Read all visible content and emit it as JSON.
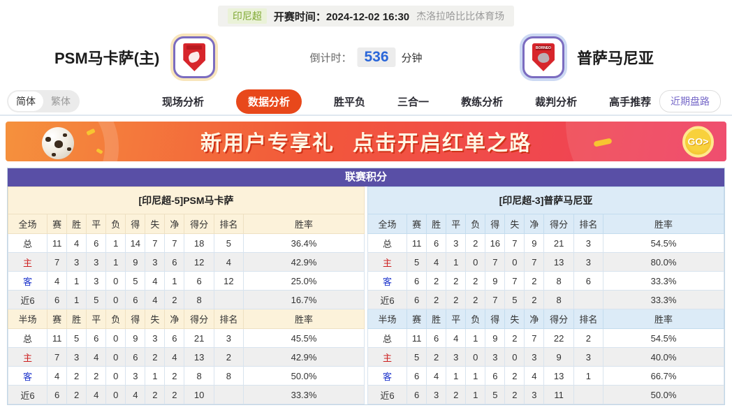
{
  "header": {
    "league_badge": "印尼超",
    "kickoff_label": "开赛时间：",
    "kickoff_time": "2024-12-02 16:30",
    "venue": "杰洛拉哈比比体育场"
  },
  "match": {
    "home_name": "PSM马卡萨(主)",
    "away_name": "普萨马尼亚",
    "away_logo_text": "BORNEO",
    "countdown_label": "倒计时：",
    "countdown_value": "536",
    "countdown_unit": "分钟"
  },
  "nav": {
    "lang_simplified": "简体",
    "lang_traditional": "繁体",
    "tabs": [
      "现场分析",
      "数据分析",
      "胜平负",
      "三合一",
      "教练分析",
      "裁判分析",
      "高手推荐"
    ],
    "active_tab": "数据分析",
    "recent_button": "近期盘路"
  },
  "banner": {
    "text_1": "新用户专享礼",
    "text_2": "点击开启红单之路",
    "go_label": "GO>"
  },
  "table": {
    "title": "联赛积分",
    "home": {
      "section_title": "[印尼超-5]PSM马卡萨",
      "full_header": [
        "全场",
        "赛",
        "胜",
        "平",
        "负",
        "得",
        "失",
        "净",
        "得分",
        "排名",
        "胜率"
      ],
      "full_rows": [
        [
          "总",
          "11",
          "4",
          "6",
          "1",
          "14",
          "7",
          "7",
          "18",
          "5",
          "36.4%"
        ],
        [
          "主",
          "7",
          "3",
          "3",
          "1",
          "9",
          "3",
          "6",
          "12",
          "4",
          "42.9%"
        ],
        [
          "客",
          "4",
          "1",
          "3",
          "0",
          "5",
          "4",
          "1",
          "6",
          "12",
          "25.0%"
        ],
        [
          "近6",
          "6",
          "1",
          "5",
          "0",
          "6",
          "4",
          "2",
          "8",
          "",
          "16.7%"
        ]
      ],
      "half_header": [
        "半场",
        "赛",
        "胜",
        "平",
        "负",
        "得",
        "失",
        "净",
        "得分",
        "排名",
        "胜率"
      ],
      "half_rows": [
        [
          "总",
          "11",
          "5",
          "6",
          "0",
          "9",
          "3",
          "6",
          "21",
          "3",
          "45.5%"
        ],
        [
          "主",
          "7",
          "3",
          "4",
          "0",
          "6",
          "2",
          "4",
          "13",
          "2",
          "42.9%"
        ],
        [
          "客",
          "4",
          "2",
          "2",
          "0",
          "3",
          "1",
          "2",
          "8",
          "8",
          "50.0%"
        ],
        [
          "近6",
          "6",
          "2",
          "4",
          "0",
          "4",
          "2",
          "2",
          "10",
          "",
          "33.3%"
        ]
      ]
    },
    "away": {
      "section_title": "[印尼超-3]普萨马尼亚",
      "full_header": [
        "全场",
        "赛",
        "胜",
        "平",
        "负",
        "得",
        "失",
        "净",
        "得分",
        "排名",
        "胜率"
      ],
      "full_rows": [
        [
          "总",
          "11",
          "6",
          "3",
          "2",
          "16",
          "7",
          "9",
          "21",
          "3",
          "54.5%"
        ],
        [
          "主",
          "5",
          "4",
          "1",
          "0",
          "7",
          "0",
          "7",
          "13",
          "3",
          "80.0%"
        ],
        [
          "客",
          "6",
          "2",
          "2",
          "2",
          "9",
          "7",
          "2",
          "8",
          "6",
          "33.3%"
        ],
        [
          "近6",
          "6",
          "2",
          "2",
          "2",
          "7",
          "5",
          "2",
          "8",
          "",
          "33.3%"
        ]
      ],
      "half_header": [
        "半场",
        "赛",
        "胜",
        "平",
        "负",
        "得",
        "失",
        "净",
        "得分",
        "排名",
        "胜率"
      ],
      "half_rows": [
        [
          "总",
          "11",
          "6",
          "4",
          "1",
          "9",
          "2",
          "7",
          "22",
          "2",
          "54.5%"
        ],
        [
          "主",
          "5",
          "2",
          "3",
          "0",
          "3",
          "0",
          "3",
          "9",
          "3",
          "40.0%"
        ],
        [
          "客",
          "6",
          "4",
          "1",
          "1",
          "6",
          "2",
          "4",
          "13",
          "1",
          "66.7%"
        ],
        [
          "近6",
          "6",
          "3",
          "2",
          "1",
          "5",
          "2",
          "3",
          "11",
          "",
          "50.0%"
        ]
      ]
    }
  },
  "colors": {
    "table_header_purple": "#594fa6",
    "active_tab_orange": "#e8481b",
    "home_section_cream": "#fcf2da",
    "away_section_blue": "#dcebf7",
    "home_row_red": "#cc1f1f",
    "away_row_blue": "#1f36cc",
    "countdown_blue": "#2a66d9",
    "team_logo_red": "#d7252b",
    "banner_gradient_start": "#f5913d",
    "banner_gradient_end": "#ee3a5f"
  }
}
